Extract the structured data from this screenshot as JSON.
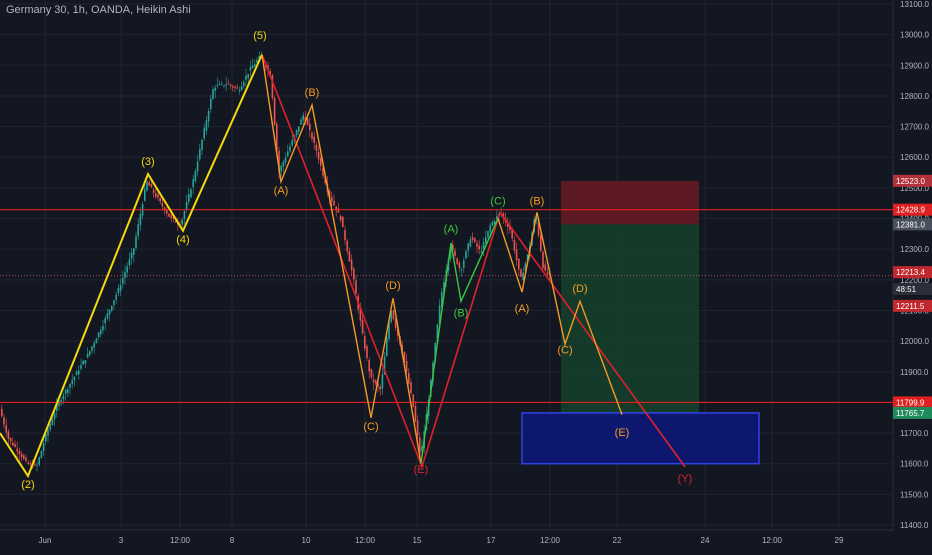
{
  "header": {
    "title": "Germany 30, 1h, OANDA, Heikin Ashi"
  },
  "colors": {
    "background": "#131722",
    "grid": "#1f2433",
    "candle_up": "#26a69a",
    "candle_down": "#ef5350",
    "wave_impulse": "#f5d90a",
    "wave_down": "#e0202c",
    "wave_orange": "#f59a23",
    "wave_green": "#3cc73c",
    "hline": "#e02020",
    "stop_zone": "#6b1a22",
    "profit_zone": "#15412a",
    "target_box": "#0e1877",
    "target_box_border": "#2f47ff"
  },
  "chart_data": {
    "type": "candlestick",
    "instrument": "Germany 30",
    "timeframe": "1h",
    "source": "OANDA",
    "candle_style": "Heikin Ashi",
    "x_ticks": [
      "Jun",
      "3",
      "12:00",
      "8",
      "10",
      "12:00",
      "15",
      "17",
      "12:00",
      "22",
      "24",
      "12:00",
      "29"
    ],
    "y_ticks": [
      "13100.0",
      "13000.0",
      "12900.0",
      "12800.0",
      "12700.0",
      "12600.0",
      "12500.0",
      "12400.0",
      "12300.0",
      "12200.0",
      "12100.0",
      "12000.0",
      "11900.0",
      "11800.0",
      "11700.0",
      "11600.0",
      "11500.0",
      "11400.0"
    ],
    "ylim": [
      11400,
      13100
    ],
    "price_labels": {
      "target_top": "12523.0",
      "resistance": "12428.9",
      "entry": "12381.0",
      "current": "12213.4",
      "countdown": "48:51",
      "bid": "12211.5",
      "support": "11799.9",
      "target_mid": "11765.7"
    },
    "horizontal_lines": [
      12428.9,
      11799.9
    ],
    "current_price": 12213.4,
    "price_path": [
      [
        0,
        11790
      ],
      [
        10,
        11680
      ],
      [
        20,
        11640
      ],
      [
        28,
        11600
      ],
      [
        38,
        11590
      ],
      [
        48,
        11700
      ],
      [
        60,
        11800
      ],
      [
        75,
        11880
      ],
      [
        90,
        11960
      ],
      [
        105,
        12060
      ],
      [
        120,
        12170
      ],
      [
        135,
        12300
      ],
      [
        148,
        12520
      ],
      [
        160,
        12460
      ],
      [
        172,
        12400
      ],
      [
        182,
        12380
      ],
      [
        195,
        12530
      ],
      [
        205,
        12680
      ],
      [
        215,
        12830
      ],
      [
        228,
        12840
      ],
      [
        240,
        12820
      ],
      [
        252,
        12890
      ],
      [
        262,
        12930
      ],
      [
        272,
        12870
      ],
      [
        280,
        12550
      ],
      [
        292,
        12640
      ],
      [
        305,
        12740
      ],
      [
        318,
        12620
      ],
      [
        330,
        12480
      ],
      [
        342,
        12400
      ],
      [
        355,
        12200
      ],
      [
        365,
        12000
      ],
      [
        372,
        11880
      ],
      [
        382,
        11840
      ],
      [
        392,
        12110
      ],
      [
        404,
        11960
      ],
      [
        414,
        11800
      ],
      [
        422,
        11620
      ],
      [
        432,
        11860
      ],
      [
        442,
        12140
      ],
      [
        452,
        12310
      ],
      [
        462,
        12230
      ],
      [
        472,
        12340
      ],
      [
        482,
        12290
      ],
      [
        492,
        12380
      ],
      [
        502,
        12420
      ],
      [
        512,
        12360
      ],
      [
        522,
        12200
      ],
      [
        530,
        12290
      ],
      [
        537,
        12420
      ],
      [
        545,
        12230
      ],
      [
        550,
        12213
      ]
    ],
    "wave_labels": [
      {
        "text": "(2)",
        "x": 28,
        "price": 11520,
        "color": "wave_impulse"
      },
      {
        "text": "(3)",
        "x": 148,
        "price": 12575,
        "color": "wave_impulse"
      },
      {
        "text": "(4)",
        "x": 183,
        "price": 12320,
        "color": "wave_impulse"
      },
      {
        "text": "(5)",
        "x": 260,
        "price": 12985,
        "color": "wave_impulse"
      },
      {
        "text": "(A)",
        "x": 281,
        "price": 12480,
        "color": "wave_orange"
      },
      {
        "text": "(B)",
        "x": 312,
        "price": 12800,
        "color": "wave_orange"
      },
      {
        "text": "(C)",
        "x": 371,
        "price": 11710,
        "color": "wave_orange"
      },
      {
        "text": "(D)",
        "x": 393,
        "price": 12170,
        "color": "wave_orange"
      },
      {
        "text": "(E)",
        "x": 421,
        "price": 11570,
        "color": "wave_down"
      },
      {
        "text": "(A)",
        "x": 451,
        "price": 12355,
        "color": "wave_green"
      },
      {
        "text": "(B)",
        "x": 461,
        "price": 12080,
        "color": "wave_green"
      },
      {
        "text": "(C)",
        "x": 498,
        "price": 12445,
        "color": "wave_green"
      },
      {
        "text": "(B)",
        "x": 537,
        "price": 12445,
        "color": "wave_orange"
      },
      {
        "text": "(A)",
        "x": 522,
        "price": 12095,
        "color": "wave_orange"
      },
      {
        "text": "(D)",
        "x": 580,
        "price": 12160,
        "color": "wave_orange"
      },
      {
        "text": "(C)",
        "x": 565,
        "price": 11960,
        "color": "wave_orange"
      },
      {
        "text": "(E)",
        "x": 622,
        "price": 11690,
        "color": "wave_orange"
      },
      {
        "text": "(Y)",
        "x": 685,
        "price": 11540,
        "color": "wave_down"
      }
    ],
    "yellow_wave": [
      [
        0,
        11700
      ],
      [
        28,
        11560
      ],
      [
        148,
        12545
      ],
      [
        183,
        12360
      ],
      [
        262,
        12935
      ]
    ],
    "red_wave_down": [
      [
        262,
        12935
      ],
      [
        422,
        11590
      ],
      [
        500,
        12420
      ],
      [
        685,
        11590
      ]
    ],
    "orange_abc_1": [
      [
        262,
        12935
      ],
      [
        281,
        12520
      ],
      [
        312,
        12770
      ],
      [
        371,
        11750
      ],
      [
        393,
        12140
      ],
      [
        421,
        11600
      ]
    ],
    "green_abc": [
      [
        421,
        11600
      ],
      [
        451,
        12320
      ],
      [
        461,
        12130
      ],
      [
        498,
        12400
      ]
    ],
    "orange_abc_2": [
      [
        498,
        12400
      ],
      [
        522,
        12160
      ],
      [
        537,
        12420
      ],
      [
        565,
        11990
      ],
      [
        580,
        12130
      ],
      [
        622,
        11760
      ]
    ],
    "risk_box": {
      "x1": 561,
      "x2": 699,
      "stop_top": 12523.0,
      "entry": 12381.0,
      "target": 11765.7
    },
    "target_box": {
      "x1": 522,
      "x2": 759,
      "top": 11765.7,
      "bottom": 11600
    }
  }
}
